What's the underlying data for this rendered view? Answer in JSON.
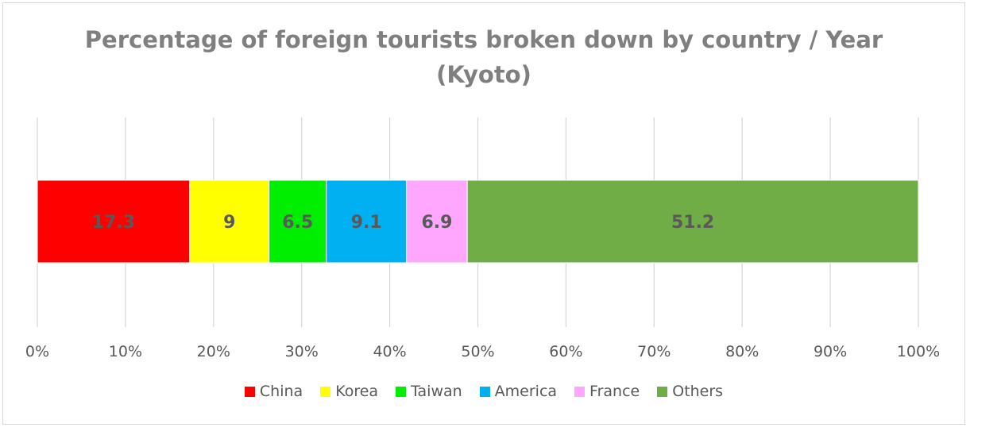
{
  "chart_data": {
    "type": "bar",
    "orientation": "horizontal",
    "stacked": true,
    "title": "Percentage of foreign tourists broken down by country / Year (Kyoto)",
    "title_lines": [
      "Percentage of foreign tourists broken down by country / Year",
      "(Kyoto)"
    ],
    "xlim": [
      0,
      100
    ],
    "x_ticks": [
      "0%",
      "10%",
      "20%",
      "30%",
      "40%",
      "50%",
      "60%",
      "70%",
      "80%",
      "90%",
      "100%"
    ],
    "grid": true,
    "legend_position": "bottom",
    "series": [
      {
        "name": "China",
        "value": 17.3,
        "color": "#ff0000",
        "label": "17.3"
      },
      {
        "name": "Korea",
        "value": 9,
        "color": "#ffff00",
        "label": "9"
      },
      {
        "name": "Taiwan",
        "value": 6.5,
        "color": "#00ee00",
        "label": "6.5"
      },
      {
        "name": "America",
        "value": 9.1,
        "color": "#00b0f0",
        "label": "9.1"
      },
      {
        "name": "France",
        "value": 6.9,
        "color": "#ffa6ff",
        "label": "6.9"
      },
      {
        "name": "Others",
        "value": 51.2,
        "color": "#70ad47",
        "label": "51.2"
      }
    ]
  }
}
